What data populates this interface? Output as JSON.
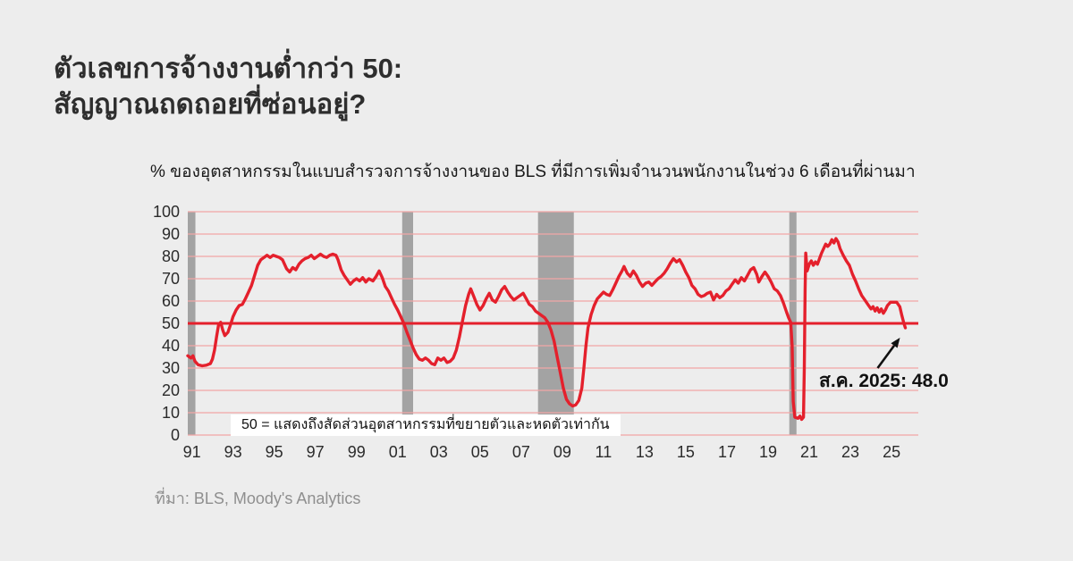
{
  "header": {
    "title_line1": "ตัวเลขการจ้างงานต่ำกว่า 50:",
    "title_line2": "สัญญาณถดถอยที่ซ่อนอยู่?"
  },
  "footer": {
    "source": "ที่มา: BLS, Moody's Analytics"
  },
  "colors": {
    "background": "#ededed",
    "line": "#e4202c",
    "grid": "#f2a6a6",
    "recession_band": "#a3a3a3",
    "axis_text": "#2b2b2b",
    "annotation_text": "#111111"
  },
  "chart_data": {
    "type": "line",
    "title": "% ของอุตสาหกรรมในแบบสำรวจการจ้างงานของ BLS ที่มีการเพิ่มจำนวนพนักงานในช่วง 6 เดือนที่ผ่านมา",
    "xlabel": "",
    "ylabel": "",
    "grid": true,
    "legend_position": "none",
    "xlim": [
      1990.8,
      2026.3
    ],
    "ylim": [
      0,
      100
    ],
    "y_ticks": [
      0,
      10,
      20,
      30,
      40,
      50,
      60,
      70,
      80,
      90,
      100
    ],
    "x_ticks": [
      {
        "value": 1991,
        "label": "91"
      },
      {
        "value": 1993,
        "label": "93"
      },
      {
        "value": 1995,
        "label": "95"
      },
      {
        "value": 1997,
        "label": "97"
      },
      {
        "value": 1999,
        "label": "99"
      },
      {
        "value": 2001,
        "label": "01"
      },
      {
        "value": 2003,
        "label": "03"
      },
      {
        "value": 2005,
        "label": "05"
      },
      {
        "value": 2007,
        "label": "07"
      },
      {
        "value": 2009,
        "label": "09"
      },
      {
        "value": 2011,
        "label": "11"
      },
      {
        "value": 2013,
        "label": "13"
      },
      {
        "value": 2015,
        "label": "15"
      },
      {
        "value": 2017,
        "label": "17"
      },
      {
        "value": 2019,
        "label": "19"
      },
      {
        "value": 2021,
        "label": "21"
      },
      {
        "value": 2023,
        "label": "23"
      },
      {
        "value": 2025,
        "label": "25"
      }
    ],
    "reference_line": {
      "value": 50,
      "label": "50 = แสดงถึงสัดส่วนอุตสาหกรรมที่ขยายตัวและหดตัวเท่ากัน"
    },
    "recession_bands": [
      [
        1990.8,
        1991.17
      ],
      [
        2001.22,
        2001.75
      ],
      [
        2007.82,
        2009.56
      ],
      [
        2020.03,
        2020.38
      ]
    ],
    "annotation": {
      "text": "ส.ค. 2025: 48.0",
      "x": 2025.67,
      "y": 48.0
    },
    "series": [
      {
        "name": "",
        "color": "#e4202c",
        "points": [
          [
            1990.8,
            35.5
          ],
          [
            1990.95,
            34.5
          ],
          [
            1991.05,
            35.5
          ],
          [
            1991.15,
            33
          ],
          [
            1991.3,
            31.5
          ],
          [
            1991.5,
            31
          ],
          [
            1991.7,
            31.3
          ],
          [
            1991.9,
            32
          ],
          [
            1992.0,
            34
          ],
          [
            1992.1,
            38
          ],
          [
            1992.2,
            44
          ],
          [
            1992.3,
            49.5
          ],
          [
            1992.4,
            50.5
          ],
          [
            1992.5,
            47
          ],
          [
            1992.6,
            44.5
          ],
          [
            1992.75,
            46
          ],
          [
            1992.9,
            50
          ],
          [
            1993.0,
            53
          ],
          [
            1993.15,
            56
          ],
          [
            1993.3,
            58
          ],
          [
            1993.45,
            58.5
          ],
          [
            1993.6,
            61
          ],
          [
            1993.75,
            64
          ],
          [
            1993.9,
            67
          ],
          [
            1994.0,
            70
          ],
          [
            1994.1,
            73
          ],
          [
            1994.2,
            76
          ],
          [
            1994.35,
            78.5
          ],
          [
            1994.5,
            79.5
          ],
          [
            1994.65,
            80.5
          ],
          [
            1994.8,
            79.5
          ],
          [
            1994.95,
            80.5
          ],
          [
            1995.1,
            80
          ],
          [
            1995.25,
            79.5
          ],
          [
            1995.4,
            78.5
          ],
          [
            1995.6,
            74.5
          ],
          [
            1995.75,
            73
          ],
          [
            1995.9,
            75
          ],
          [
            1996.05,
            74
          ],
          [
            1996.2,
            76.5
          ],
          [
            1996.35,
            78
          ],
          [
            1996.5,
            79
          ],
          [
            1996.65,
            79.5
          ],
          [
            1996.8,
            80.5
          ],
          [
            1996.95,
            79
          ],
          [
            1997.1,
            80
          ],
          [
            1997.25,
            81
          ],
          [
            1997.4,
            80
          ],
          [
            1997.55,
            79.5
          ],
          [
            1997.7,
            80.5
          ],
          [
            1997.85,
            81
          ],
          [
            1998.0,
            80.5
          ],
          [
            1998.1,
            78.5
          ],
          [
            1998.25,
            74
          ],
          [
            1998.4,
            71.5
          ],
          [
            1998.55,
            69.5
          ],
          [
            1998.7,
            67.5
          ],
          [
            1998.85,
            69
          ],
          [
            1999.0,
            70
          ],
          [
            1999.15,
            69
          ],
          [
            1999.3,
            70.5
          ],
          [
            1999.45,
            68.5
          ],
          [
            1999.6,
            70
          ],
          [
            1999.8,
            69
          ],
          [
            1999.95,
            71
          ],
          [
            2000.1,
            73.5
          ],
          [
            2000.25,
            70.5
          ],
          [
            2000.4,
            66.5
          ],
          [
            2000.55,
            64.5
          ],
          [
            2000.7,
            61.5
          ],
          [
            2000.85,
            58.5
          ],
          [
            2001.0,
            56
          ],
          [
            2001.15,
            53
          ],
          [
            2001.3,
            50
          ],
          [
            2001.45,
            46
          ],
          [
            2001.6,
            42.5
          ],
          [
            2001.75,
            39
          ],
          [
            2001.9,
            36
          ],
          [
            2002.05,
            34
          ],
          [
            2002.2,
            33.5
          ],
          [
            2002.35,
            34.5
          ],
          [
            2002.5,
            33.5
          ],
          [
            2002.65,
            32
          ],
          [
            2002.8,
            31.5
          ],
          [
            2002.95,
            34.5
          ],
          [
            2003.1,
            33.5
          ],
          [
            2003.25,
            34.5
          ],
          [
            2003.4,
            32.5
          ],
          [
            2003.55,
            33
          ],
          [
            2003.7,
            34.5
          ],
          [
            2003.85,
            38
          ],
          [
            2004.0,
            44
          ],
          [
            2004.15,
            51
          ],
          [
            2004.3,
            58
          ],
          [
            2004.45,
            63
          ],
          [
            2004.55,
            65.5
          ],
          [
            2004.7,
            62
          ],
          [
            2004.85,
            58.5
          ],
          [
            2005.0,
            56
          ],
          [
            2005.15,
            58
          ],
          [
            2005.3,
            61
          ],
          [
            2005.45,
            63.5
          ],
          [
            2005.6,
            60.5
          ],
          [
            2005.75,
            59.5
          ],
          [
            2005.9,
            62
          ],
          [
            2006.05,
            65
          ],
          [
            2006.2,
            66.5
          ],
          [
            2006.35,
            64
          ],
          [
            2006.5,
            62
          ],
          [
            2006.65,
            60.5
          ],
          [
            2006.8,
            61.5
          ],
          [
            2006.95,
            62.5
          ],
          [
            2007.1,
            63.5
          ],
          [
            2007.25,
            61
          ],
          [
            2007.4,
            58.5
          ],
          [
            2007.55,
            57.5
          ],
          [
            2007.7,
            55.5
          ],
          [
            2007.85,
            54.5
          ],
          [
            2008.0,
            53.5
          ],
          [
            2008.15,
            52.5
          ],
          [
            2008.3,
            50.5
          ],
          [
            2008.45,
            47
          ],
          [
            2008.6,
            42
          ],
          [
            2008.75,
            35
          ],
          [
            2008.9,
            28
          ],
          [
            2009.05,
            21
          ],
          [
            2009.2,
            16
          ],
          [
            2009.35,
            14
          ],
          [
            2009.5,
            13
          ],
          [
            2009.65,
            13.5
          ],
          [
            2009.8,
            15.5
          ],
          [
            2009.95,
            21
          ],
          [
            2010.05,
            30
          ],
          [
            2010.15,
            40
          ],
          [
            2010.25,
            48
          ],
          [
            2010.4,
            54
          ],
          [
            2010.55,
            58
          ],
          [
            2010.7,
            61
          ],
          [
            2010.85,
            62.5
          ],
          [
            2011.0,
            64
          ],
          [
            2011.15,
            63
          ],
          [
            2011.3,
            62.5
          ],
          [
            2011.45,
            65
          ],
          [
            2011.6,
            68
          ],
          [
            2011.75,
            71
          ],
          [
            2011.9,
            73.5
          ],
          [
            2012.0,
            75.5
          ],
          [
            2012.15,
            72.5
          ],
          [
            2012.3,
            71
          ],
          [
            2012.45,
            73.5
          ],
          [
            2012.6,
            71.5
          ],
          [
            2012.75,
            68.5
          ],
          [
            2012.9,
            66.5
          ],
          [
            2013.05,
            68
          ],
          [
            2013.2,
            68.5
          ],
          [
            2013.35,
            67
          ],
          [
            2013.5,
            68.5
          ],
          [
            2013.65,
            70
          ],
          [
            2013.8,
            71
          ],
          [
            2013.95,
            72.5
          ],
          [
            2014.1,
            74.5
          ],
          [
            2014.25,
            77
          ],
          [
            2014.4,
            79
          ],
          [
            2014.55,
            77.5
          ],
          [
            2014.7,
            78.5
          ],
          [
            2014.85,
            76
          ],
          [
            2015.0,
            73
          ],
          [
            2015.15,
            70.5
          ],
          [
            2015.3,
            67
          ],
          [
            2015.45,
            65.5
          ],
          [
            2015.6,
            63
          ],
          [
            2015.75,
            62
          ],
          [
            2015.9,
            62.5
          ],
          [
            2016.05,
            63.5
          ],
          [
            2016.2,
            64
          ],
          [
            2016.35,
            60.5
          ],
          [
            2016.5,
            63
          ],
          [
            2016.65,
            61.5
          ],
          [
            2016.8,
            62.5
          ],
          [
            2016.95,
            64.5
          ],
          [
            2017.1,
            65.5
          ],
          [
            2017.25,
            67.5
          ],
          [
            2017.4,
            69.5
          ],
          [
            2017.55,
            68
          ],
          [
            2017.7,
            70.5
          ],
          [
            2017.85,
            69
          ],
          [
            2018.0,
            71.5
          ],
          [
            2018.15,
            74
          ],
          [
            2018.3,
            75
          ],
          [
            2018.45,
            72
          ],
          [
            2018.55,
            68.5
          ],
          [
            2018.7,
            71
          ],
          [
            2018.85,
            73
          ],
          [
            2019.0,
            71
          ],
          [
            2019.15,
            68.5
          ],
          [
            2019.3,
            65.5
          ],
          [
            2019.45,
            64.5
          ],
          [
            2019.6,
            62.5
          ],
          [
            2019.75,
            59
          ],
          [
            2019.9,
            55
          ],
          [
            2020.0,
            52.5
          ],
          [
            2020.1,
            50.5
          ],
          [
            2020.17,
            40
          ],
          [
            2020.22,
            15
          ],
          [
            2020.3,
            8
          ],
          [
            2020.45,
            7.5
          ],
          [
            2020.55,
            8.5
          ],
          [
            2020.63,
            7
          ],
          [
            2020.72,
            8
          ],
          [
            2020.76,
            30
          ],
          [
            2020.8,
            65
          ],
          [
            2020.83,
            81.5
          ],
          [
            2020.9,
            73.5
          ],
          [
            2021.0,
            76.5
          ],
          [
            2021.1,
            78
          ],
          [
            2021.2,
            76
          ],
          [
            2021.3,
            77.5
          ],
          [
            2021.4,
            76.5
          ],
          [
            2021.5,
            79
          ],
          [
            2021.6,
            81.5
          ],
          [
            2021.7,
            83.5
          ],
          [
            2021.8,
            85.5
          ],
          [
            2021.9,
            84.5
          ],
          [
            2022.0,
            85.5
          ],
          [
            2022.1,
            87.5
          ],
          [
            2022.2,
            86
          ],
          [
            2022.3,
            88
          ],
          [
            2022.4,
            86.5
          ],
          [
            2022.5,
            83.5
          ],
          [
            2022.65,
            80.5
          ],
          [
            2022.8,
            78
          ],
          [
            2022.95,
            76
          ],
          [
            2023.1,
            72
          ],
          [
            2023.25,
            69
          ],
          [
            2023.4,
            65.5
          ],
          [
            2023.55,
            62.5
          ],
          [
            2023.7,
            60.5
          ],
          [
            2023.85,
            58.5
          ],
          [
            2024.0,
            56.5
          ],
          [
            2024.1,
            57.5
          ],
          [
            2024.2,
            55.5
          ],
          [
            2024.3,
            57
          ],
          [
            2024.4,
            55
          ],
          [
            2024.5,
            56.5
          ],
          [
            2024.6,
            54.5
          ],
          [
            2024.7,
            56
          ],
          [
            2024.8,
            58
          ],
          [
            2024.95,
            59.5
          ],
          [
            2025.1,
            59.5
          ],
          [
            2025.25,
            59.5
          ],
          [
            2025.4,
            57.5
          ],
          [
            2025.5,
            53.5
          ],
          [
            2025.6,
            50
          ],
          [
            2025.67,
            48
          ]
        ]
      }
    ]
  }
}
